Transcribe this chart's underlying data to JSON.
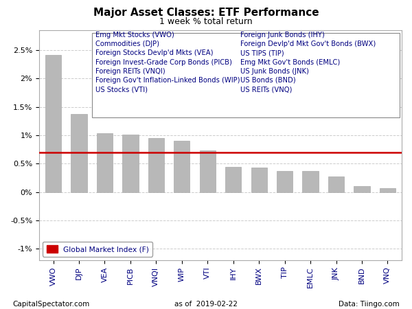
{
  "title": "Major Asset Classes: ETF Performance",
  "subtitle": "1 week % total return",
  "categories": [
    "VWO",
    "DJP",
    "VEA",
    "PICB",
    "VNQI",
    "WIP",
    "VTI",
    "IHY",
    "BWX",
    "TIP",
    "EMLC",
    "JNK",
    "BND",
    "VNQ"
  ],
  "values": [
    2.42,
    1.38,
    1.04,
    1.01,
    0.95,
    0.9,
    0.73,
    0.44,
    0.43,
    0.37,
    0.37,
    0.28,
    0.1,
    0.07
  ],
  "bar_color": "#b8b8b8",
  "reference_line": 0.7,
  "reference_color": "#cc0000",
  "ylim": [
    -1.2,
    2.85
  ],
  "yticks": [
    -1.0,
    -0.5,
    0.0,
    0.5,
    1.0,
    1.5,
    2.0,
    2.5
  ],
  "ytick_labels": [
    "-1%",
    "-0.5%",
    "0%",
    "0.5%",
    "1%",
    "1.5%",
    "2%",
    "2.5%"
  ],
  "footer_left": "CapitalSpectator.com",
  "footer_center": "as of  2019-02-22",
  "footer_right": "Data: Tiingo.com",
  "legend_text": "Global Market Index (F)",
  "legend_items_left": [
    "Emg Mkt Stocks (VWO)",
    "Commodities (DJP)",
    "Foreign Stocks Devlp'd Mkts (VEA)",
    "Foreign Invest-Grade Corp Bonds (PICB)",
    "Foreign REITs (VNQI)",
    "Foreign Gov't Inflation-Linked Bonds (WIP)",
    "US Stocks (VTI)"
  ],
  "legend_items_right": [
    "Foreign Junk Bonds (IHY)",
    "Foreign Devlp'd Mkt Gov't Bonds (BWX)",
    "US TIPS (TIP)",
    "Emg Mkt Gov't Bonds (EMLC)",
    "US Junk Bonds (JNK)",
    "US Bonds (BND)",
    "US REITs (VNQ)"
  ],
  "text_color": "#000080",
  "background_color": "#ffffff",
  "grid_color": "#cccccc",
  "title_fontsize": 11,
  "subtitle_fontsize": 9,
  "tick_fontsize": 8,
  "footer_fontsize": 7.5,
  "legend_fontsize": 7.2,
  "bar_width": 0.62
}
